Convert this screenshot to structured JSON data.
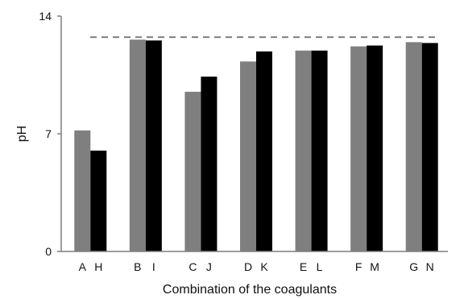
{
  "chart_data": {
    "type": "bar",
    "title": "",
    "xlabel": "Combination of the coagulants",
    "ylabel": "pH",
    "ylim": [
      0,
      14
    ],
    "yticks": [
      0,
      7,
      14
    ],
    "grid": false,
    "legend": "none",
    "colors": {
      "gray_bar": "#7f7f7f",
      "black_bar": "#000000",
      "axis": "#7f7f7f",
      "reference_line": "#7f7f7f"
    },
    "reference_line": {
      "y": 12.75,
      "style": "dashed"
    },
    "groups": [
      {
        "labels": [
          "A",
          "H"
        ],
        "values": [
          7.2,
          6.0
        ]
      },
      {
        "labels": [
          "B",
          "I"
        ],
        "values": [
          12.6,
          12.55
        ]
      },
      {
        "labels": [
          "C",
          "J"
        ],
        "values": [
          9.5,
          10.4
        ]
      },
      {
        "labels": [
          "D",
          "K"
        ],
        "values": [
          11.3,
          11.9
        ]
      },
      {
        "labels": [
          "E",
          "L"
        ],
        "values": [
          11.95,
          11.95
        ]
      },
      {
        "labels": [
          "F",
          "M"
        ],
        "values": [
          12.2,
          12.25
        ]
      },
      {
        "labels": [
          "G",
          "N"
        ],
        "values": [
          12.45,
          12.4
        ]
      }
    ]
  }
}
